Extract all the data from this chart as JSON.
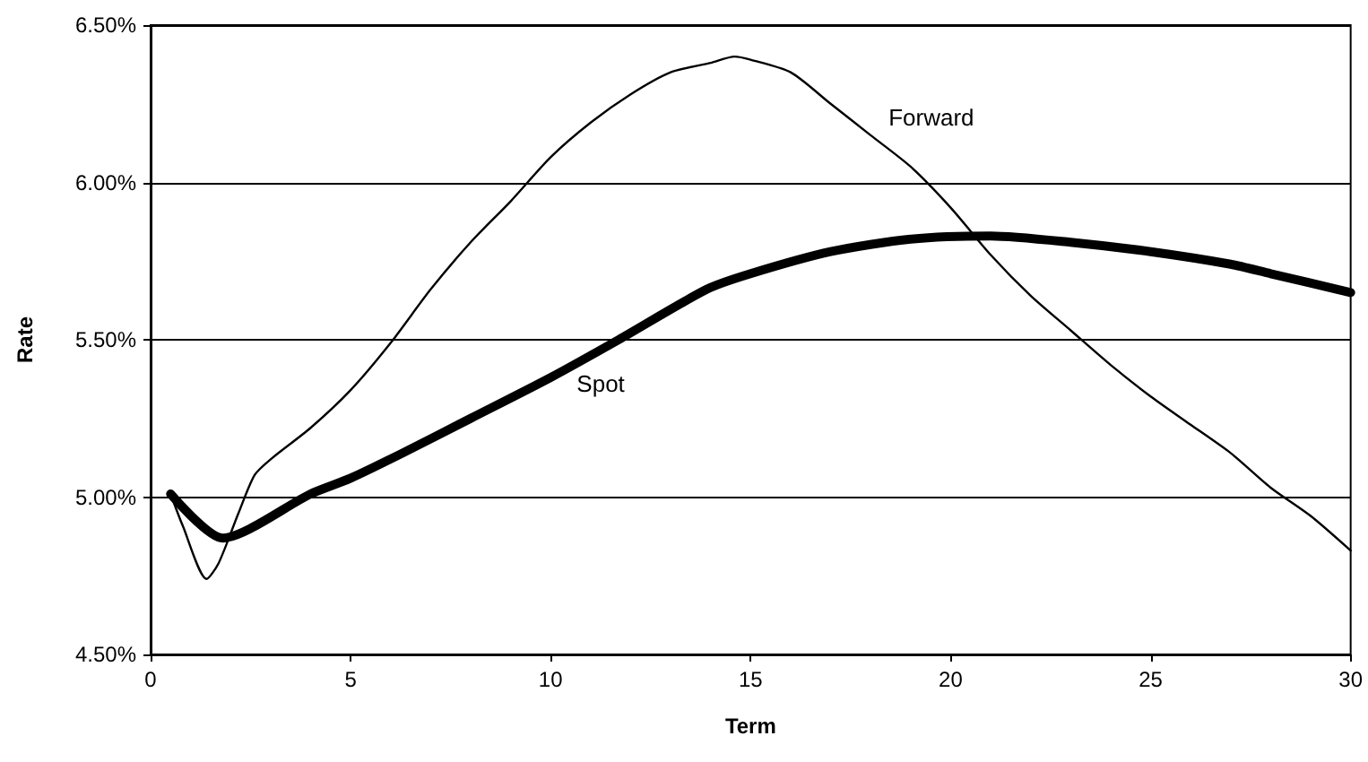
{
  "chart_data": {
    "type": "line",
    "xlabel": "Term",
    "ylabel": "Rate",
    "series": [
      {
        "name": "Spot",
        "color": "#000000",
        "x": [
          0.5,
          1.8,
          4,
          5,
          6.3,
          8,
          10,
          11.7,
          13.9,
          15,
          17,
          19,
          21,
          23,
          25,
          27,
          28,
          30
        ],
        "values": [
          5.01,
          4.87,
          5.01,
          5.06,
          5.14,
          5.25,
          5.38,
          5.5,
          5.66,
          5.71,
          5.78,
          5.82,
          5.83,
          5.81,
          5.78,
          5.74,
          5.71,
          5.65
        ]
      },
      {
        "name": "Forward",
        "color": "#000000",
        "x": [
          0.5,
          0.8,
          1.4,
          1.7,
          2.2,
          2.6,
          3,
          4,
          5,
          6,
          7,
          8,
          9,
          10,
          11,
          12,
          13,
          14,
          14.6,
          15,
          16,
          17,
          18,
          19,
          20,
          21,
          22,
          23,
          24,
          25,
          26,
          27,
          28,
          29,
          30
        ],
        "values": [
          5.01,
          4.91,
          4.74,
          4.79,
          4.95,
          5.07,
          5.12,
          5.22,
          5.34,
          5.49,
          5.66,
          5.81,
          5.94,
          6.08,
          6.19,
          6.28,
          6.35,
          6.38,
          6.4,
          6.39,
          6.35,
          6.25,
          6.15,
          6.05,
          5.92,
          5.77,
          5.64,
          5.53,
          5.42,
          5.32,
          5.23,
          5.14,
          5.03,
          4.94,
          4.83
        ]
      }
    ],
    "xlim": [
      0,
      30
    ],
    "xticks": [
      0,
      5,
      10,
      15,
      20,
      25,
      30
    ],
    "ylim": [
      4.5,
      6.5
    ],
    "yticks": [
      {
        "value": 4.5,
        "label": "4.50%"
      },
      {
        "value": 5,
        "label": "5.00%"
      },
      {
        "value": 5.5,
        "label": "5.50%"
      },
      {
        "value": 6,
        "label": "6.00%"
      },
      {
        "value": 6.5,
        "label": "6.50%"
      }
    ],
    "grid": "y",
    "legend": false,
    "marker": "none",
    "line_style": "solid"
  }
}
